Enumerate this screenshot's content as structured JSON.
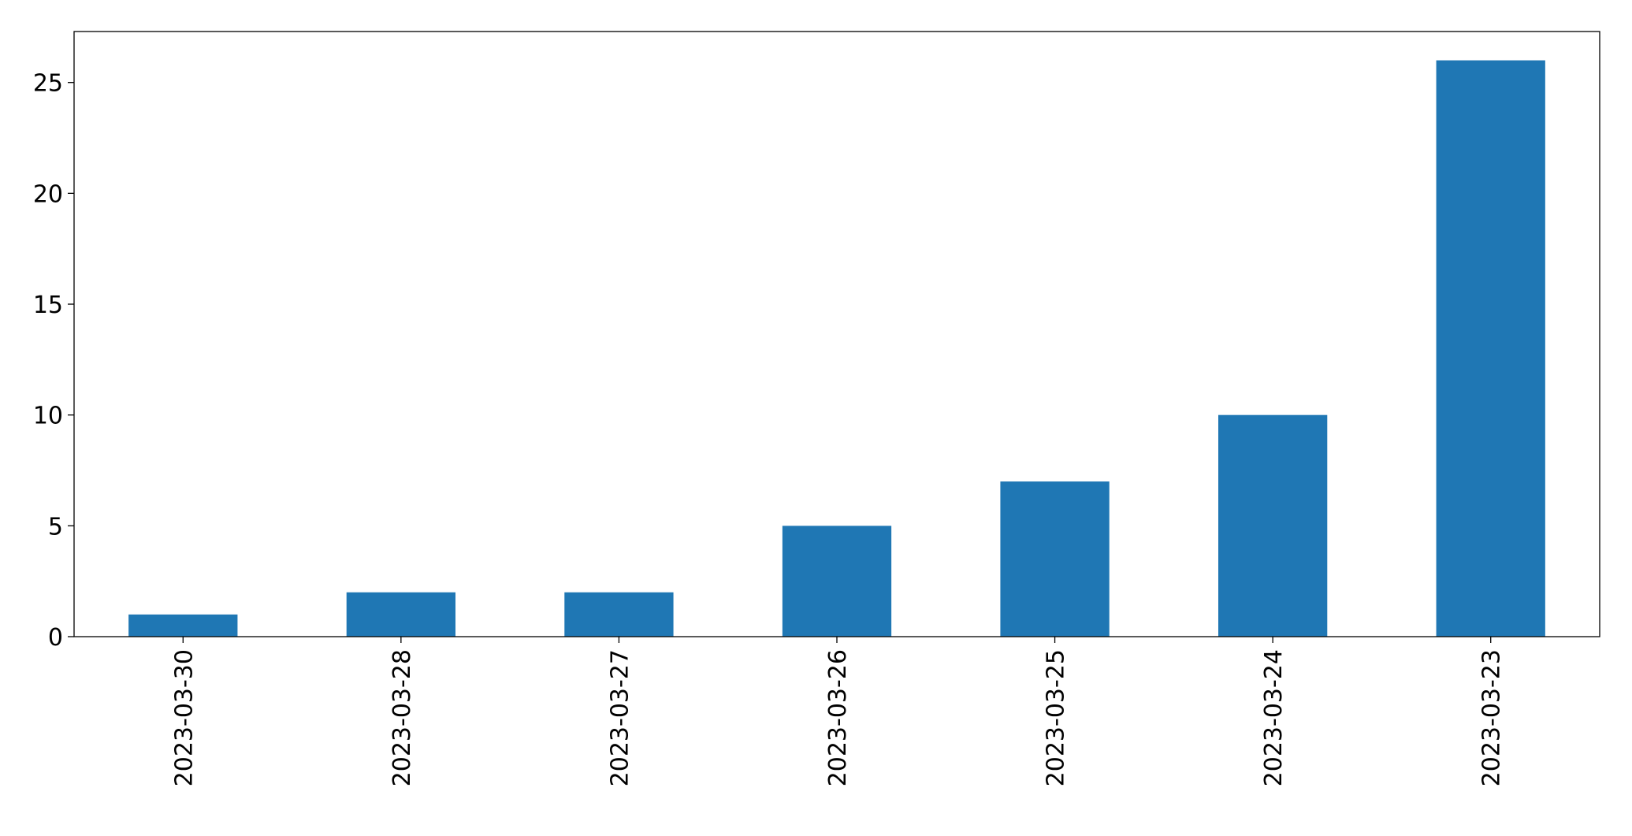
{
  "chart_data": {
    "type": "bar",
    "categories": [
      "2023-03-30",
      "2023-03-28",
      "2023-03-27",
      "2023-03-26",
      "2023-03-25",
      "2023-03-24",
      "2023-03-23"
    ],
    "values": [
      1,
      2,
      2,
      5,
      7,
      10,
      26
    ],
    "color": "#1f77b4",
    "ylim": [
      0,
      27.3
    ],
    "yticks": [
      0,
      5,
      10,
      15,
      20,
      25
    ],
    "grid": false
  }
}
